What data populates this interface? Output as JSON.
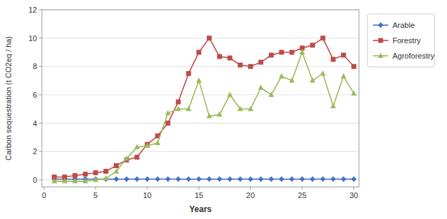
{
  "chart_data": {
    "type": "line",
    "xlabel": "Years",
    "ylabel": "Carbon sequestration (t CO2eq / ha)",
    "x": [
      1,
      2,
      3,
      4,
      5,
      6,
      7,
      8,
      9,
      10,
      11,
      12,
      13,
      14,
      15,
      16,
      17,
      18,
      19,
      20,
      21,
      22,
      23,
      24,
      25,
      26,
      27,
      28,
      29,
      30
    ],
    "series": [
      {
        "name": "Arable",
        "color": "#4472C4",
        "marker": "diamond",
        "values": [
          0.05,
          0.05,
          0.05,
          0.05,
          0.05,
          0.05,
          0.05,
          0.05,
          0.05,
          0.05,
          0.05,
          0.05,
          0.05,
          0.05,
          0.05,
          0.05,
          0.05,
          0.05,
          0.05,
          0.05,
          0.05,
          0.05,
          0.05,
          0.05,
          0.05,
          0.05,
          0.05,
          0.05,
          0.05,
          0.05
        ]
      },
      {
        "name": "Forestry",
        "color": "#BE4B48",
        "marker": "square",
        "values": [
          0.2,
          0.2,
          0.3,
          0.4,
          0.5,
          0.6,
          1.0,
          1.4,
          1.6,
          2.5,
          3.1,
          4.0,
          5.5,
          7.5,
          9.0,
          10.0,
          8.7,
          8.6,
          8.1,
          8.0,
          8.3,
          8.8,
          9.0,
          9.0,
          9.3,
          9.5,
          10.0,
          8.5,
          8.8,
          8.0
        ]
      },
      {
        "name": "Agroforestry",
        "color": "#9BBB59",
        "marker": "triangle",
        "values": [
          -0.1,
          -0.1,
          -0.1,
          -0.1,
          0.0,
          0.1,
          0.6,
          1.5,
          2.3,
          2.4,
          2.6,
          4.7,
          5.0,
          5.0,
          7.0,
          4.5,
          4.6,
          6.0,
          5.0,
          5.0,
          6.5,
          6.0,
          7.3,
          7.0,
          9.0,
          7.0,
          7.5,
          5.2,
          7.3,
          6.1
        ]
      }
    ],
    "xlim": [
      -0.2,
      30.5
    ],
    "ylim": [
      -0.5,
      12
    ],
    "xticks": [
      0,
      5,
      10,
      15,
      20,
      25,
      30
    ],
    "yticks": [
      0,
      2,
      4,
      6,
      8,
      10,
      12
    ],
    "grid": "y",
    "legend": "right"
  }
}
